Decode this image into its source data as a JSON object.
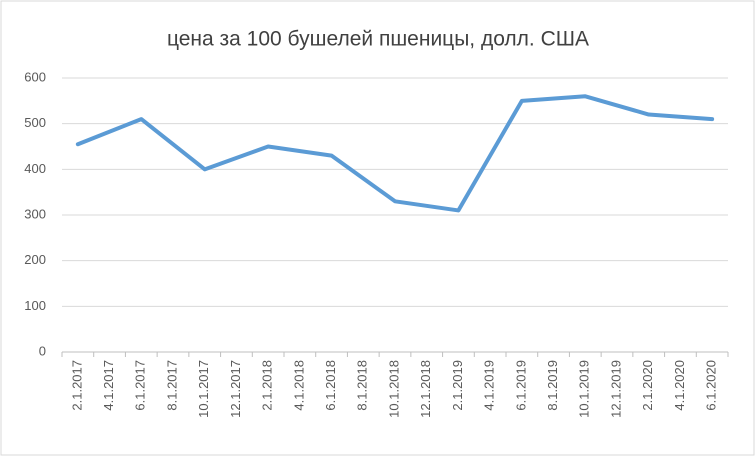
{
  "chart_data": {
    "type": "line",
    "title": "цена  за 100 бушелей пшеницы, долл. США",
    "x": [
      "2.1.2017",
      "6.1.2017",
      "10.1.2017",
      "2.1.2018",
      "6.1.2018",
      "10.1.2018",
      "2.1.2019",
      "6.1.2019",
      "10.1.2019",
      "2.1.2020",
      "6.1.2020"
    ],
    "values": [
      455,
      510,
      400,
      450,
      430,
      330,
      310,
      550,
      560,
      520,
      510
    ],
    "xticks": [
      "2.1.2017",
      "4.1.2017",
      "6.1.2017",
      "8.1.2017",
      "10.1.2017",
      "12.1.2017",
      "2.1.2018",
      "4.1.2018",
      "6.1.2018",
      "8.1.2018",
      "10.1.2018",
      "12.1.2018",
      "2.1.2019",
      "4.1.2019",
      "6.1.2019",
      "8.1.2019",
      "10.1.2019",
      "12.1.2019",
      "2.1.2020",
      "4.1.2020",
      "6.1.2020"
    ],
    "color": "#5b9bd5",
    "ylim": [
      0,
      600
    ],
    "yticks": [
      0,
      100,
      200,
      300,
      400,
      500,
      600
    ],
    "grid": true
  }
}
